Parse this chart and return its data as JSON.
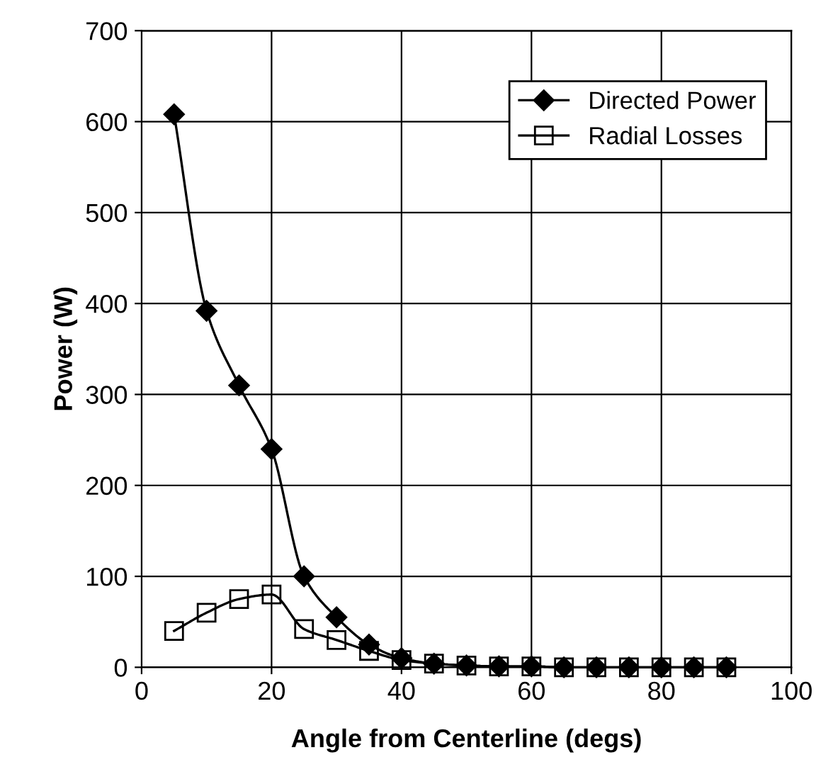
{
  "chart_data": {
    "type": "line",
    "xlabel": "Angle from Centerline (degs)",
    "ylabel": "Power (W)",
    "x": [
      5,
      10,
      15,
      20,
      25,
      30,
      35,
      40,
      45,
      50,
      55,
      60,
      65,
      70,
      75,
      80,
      85,
      90
    ],
    "series": [
      {
        "name": "Directed Power",
        "color": "#000000",
        "marker": "diamond",
        "values": [
          608,
          392,
          310,
          240,
          100,
          55,
          25,
          10,
          4,
          2,
          1,
          1,
          0,
          0,
          0,
          0,
          0,
          0
        ]
      },
      {
        "name": "Radial Losses",
        "color": "#000000",
        "marker": "square",
        "values": [
          40,
          60,
          75,
          80,
          42,
          30,
          18,
          8,
          4,
          2,
          1,
          1,
          0,
          0,
          0,
          0,
          0,
          0
        ]
      }
    ],
    "xlim": [
      0,
      100
    ],
    "xticks": [
      0,
      20,
      40,
      60,
      80,
      100
    ],
    "ylim": [
      0,
      700
    ],
    "yticks": [
      0,
      100,
      200,
      300,
      400,
      500,
      600,
      700
    ],
    "grid": true,
    "legend": "top right",
    "line_style": "solid"
  }
}
